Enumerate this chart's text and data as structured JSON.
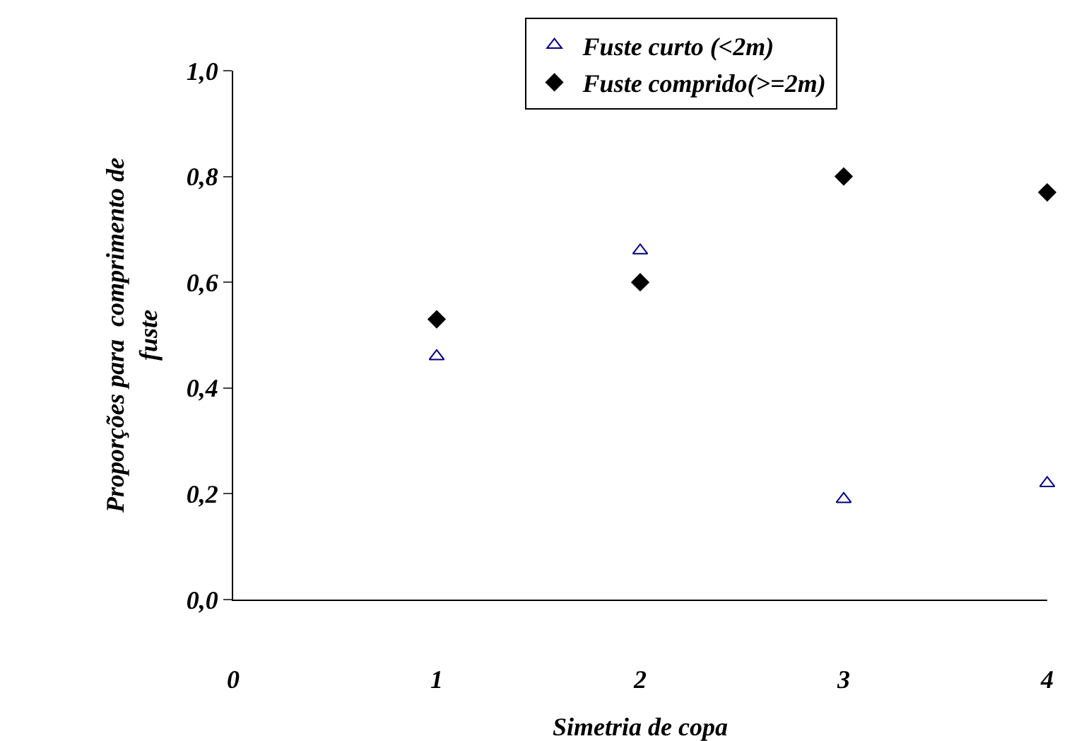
{
  "chart_data": {
    "type": "scatter",
    "xlabel": "Simetria de copa",
    "ylabel": "Proporções para  comprimento de fuste",
    "x": [
      1,
      2,
      3,
      4
    ],
    "series": [
      {
        "name": "Fuste curto (<2m)",
        "color": "#000080",
        "marker": "triangle",
        "values": [
          0.46,
          0.66,
          0.19,
          0.22
        ]
      },
      {
        "name": "Fuste comprido(>=2m)",
        "color": "#000000",
        "marker": "diamond",
        "values": [
          0.53,
          0.6,
          0.8,
          0.77
        ]
      }
    ],
    "xlim": [
      0,
      4
    ],
    "xticks": [
      {
        "value": 0,
        "label": "0"
      },
      {
        "value": 1,
        "label": "1"
      },
      {
        "value": 2,
        "label": "2"
      },
      {
        "value": 3,
        "label": "3"
      },
      {
        "value": 4,
        "label": "4"
      }
    ],
    "ylim": [
      0,
      1
    ],
    "yticks": [
      {
        "value": 0,
        "label": "0,0"
      },
      {
        "value": 0.2,
        "label": "0,2"
      },
      {
        "value": 0.4,
        "label": "0,4"
      },
      {
        "value": 0.6,
        "label": "0,6"
      },
      {
        "value": 0.8,
        "label": "0,8"
      },
      {
        "value": 1,
        "label": "1,0"
      }
    ],
    "grid": false,
    "legend": "top"
  }
}
